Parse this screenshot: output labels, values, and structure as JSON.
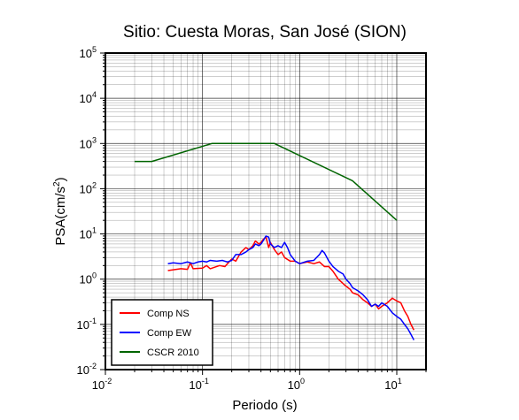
{
  "chart_data": {
    "type": "line",
    "title": "Sitio: Cuesta Moras, San José (SION)",
    "xlabel": "Periodo (s)",
    "ylabel_main": "PSA(cm/s",
    "ylabel_sup": "2",
    "ylabel_end": ")",
    "x_scale": "log",
    "y_scale": "log",
    "xlim": [
      0.01,
      20
    ],
    "ylim": [
      0.01,
      100000
    ],
    "grid": true,
    "legend_position": "bottom-left",
    "x_ticks": [
      {
        "base": "10",
        "exp": "-2",
        "value": 0.01
      },
      {
        "base": "10",
        "exp": "-1",
        "value": 0.1
      },
      {
        "base": "10",
        "exp": "0",
        "value": 1
      },
      {
        "base": "10",
        "exp": "1",
        "value": 10
      }
    ],
    "y_ticks": [
      {
        "base": "10",
        "exp": "-2",
        "value": 0.01
      },
      {
        "base": "10",
        "exp": "-1",
        "value": 0.1
      },
      {
        "base": "10",
        "exp": "0",
        "value": 1
      },
      {
        "base": "10",
        "exp": "1",
        "value": 10
      },
      {
        "base": "10",
        "exp": "2",
        "value": 100
      },
      {
        "base": "10",
        "exp": "3",
        "value": 1000
      },
      {
        "base": "10",
        "exp": "4",
        "value": 10000
      },
      {
        "base": "10",
        "exp": "5",
        "value": 100000
      }
    ],
    "series": [
      {
        "name": "Comp NS",
        "color": "#ff0000",
        "points": [
          [
            0.044,
            1.55
          ],
          [
            0.06,
            1.7
          ],
          [
            0.07,
            1.65
          ],
          [
            0.075,
            2.3
          ],
          [
            0.08,
            1.7
          ],
          [
            0.1,
            1.75
          ],
          [
            0.11,
            2.0
          ],
          [
            0.12,
            1.7
          ],
          [
            0.15,
            2.0
          ],
          [
            0.17,
            1.9
          ],
          [
            0.2,
            2.8
          ],
          [
            0.22,
            2.5
          ],
          [
            0.25,
            4.0
          ],
          [
            0.28,
            5.0
          ],
          [
            0.3,
            4.5
          ],
          [
            0.33,
            5.5
          ],
          [
            0.35,
            7.0
          ],
          [
            0.38,
            6.0
          ],
          [
            0.4,
            6.5
          ],
          [
            0.42,
            7.5
          ],
          [
            0.45,
            8.5
          ],
          [
            0.48,
            5.0
          ],
          [
            0.5,
            6.5
          ],
          [
            0.55,
            4.5
          ],
          [
            0.6,
            3.5
          ],
          [
            0.65,
            4.0
          ],
          [
            0.7,
            3.0
          ],
          [
            0.8,
            2.5
          ],
          [
            0.9,
            2.5
          ],
          [
            1.0,
            2.2
          ],
          [
            1.2,
            2.4
          ],
          [
            1.4,
            2.2
          ],
          [
            1.6,
            2.4
          ],
          [
            1.8,
            1.9
          ],
          [
            2.0,
            1.9
          ],
          [
            2.2,
            1.5
          ],
          [
            2.5,
            1.0
          ],
          [
            2.8,
            0.8
          ],
          [
            3.0,
            0.7
          ],
          [
            3.3,
            0.6
          ],
          [
            3.5,
            0.5
          ],
          [
            4.0,
            0.45
          ],
          [
            4.5,
            0.35
          ],
          [
            5.0,
            0.3
          ],
          [
            5.5,
            0.25
          ],
          [
            6.0,
            0.28
          ],
          [
            6.5,
            0.22
          ],
          [
            7.0,
            0.25
          ],
          [
            8.0,
            0.3
          ],
          [
            9.0,
            0.38
          ],
          [
            10.0,
            0.33
          ],
          [
            11.0,
            0.3
          ],
          [
            12.0,
            0.2
          ],
          [
            13.0,
            0.15
          ],
          [
            14.0,
            0.1
          ],
          [
            15.0,
            0.075
          ]
        ]
      },
      {
        "name": "Comp EW",
        "color": "#0000ff",
        "points": [
          [
            0.044,
            2.2
          ],
          [
            0.05,
            2.3
          ],
          [
            0.06,
            2.2
          ],
          [
            0.07,
            2.4
          ],
          [
            0.08,
            2.2
          ],
          [
            0.09,
            2.4
          ],
          [
            0.1,
            2.5
          ],
          [
            0.11,
            2.4
          ],
          [
            0.12,
            2.6
          ],
          [
            0.14,
            2.5
          ],
          [
            0.16,
            2.6
          ],
          [
            0.18,
            2.4
          ],
          [
            0.2,
            2.6
          ],
          [
            0.22,
            3.5
          ],
          [
            0.25,
            3.5
          ],
          [
            0.28,
            4.0
          ],
          [
            0.3,
            4.5
          ],
          [
            0.33,
            5.0
          ],
          [
            0.35,
            6.0
          ],
          [
            0.38,
            5.5
          ],
          [
            0.4,
            6.0
          ],
          [
            0.42,
            7.0
          ],
          [
            0.45,
            9.0
          ],
          [
            0.48,
            8.5
          ],
          [
            0.5,
            6.0
          ],
          [
            0.55,
            5.0
          ],
          [
            0.6,
            5.5
          ],
          [
            0.65,
            5.0
          ],
          [
            0.7,
            6.5
          ],
          [
            0.75,
            5.0
          ],
          [
            0.8,
            3.5
          ],
          [
            0.9,
            2.5
          ],
          [
            1.0,
            2.2
          ],
          [
            1.2,
            2.5
          ],
          [
            1.4,
            2.6
          ],
          [
            1.6,
            3.5
          ],
          [
            1.7,
            4.3
          ],
          [
            1.8,
            3.8
          ],
          [
            2.0,
            2.5
          ],
          [
            2.2,
            1.9
          ],
          [
            2.5,
            1.5
          ],
          [
            2.8,
            1.3
          ],
          [
            3.0,
            1.0
          ],
          [
            3.3,
            0.8
          ],
          [
            3.5,
            0.65
          ],
          [
            4.0,
            0.55
          ],
          [
            4.5,
            0.45
          ],
          [
            5.0,
            0.35
          ],
          [
            5.5,
            0.25
          ],
          [
            6.0,
            0.28
          ],
          [
            6.5,
            0.25
          ],
          [
            7.0,
            0.3
          ],
          [
            8.0,
            0.25
          ],
          [
            9.0,
            0.18
          ],
          [
            10.0,
            0.15
          ],
          [
            11.0,
            0.13
          ],
          [
            12.0,
            0.1
          ],
          [
            13.0,
            0.08
          ],
          [
            14.0,
            0.06
          ],
          [
            15.0,
            0.045
          ]
        ]
      },
      {
        "name": "CSCR 2010",
        "color": "#006400",
        "points": [
          [
            0.02,
            400
          ],
          [
            0.03,
            400
          ],
          [
            0.125,
            1000
          ],
          [
            0.55,
            1000
          ],
          [
            3.5,
            150
          ],
          [
            10.0,
            20
          ]
        ]
      }
    ]
  }
}
